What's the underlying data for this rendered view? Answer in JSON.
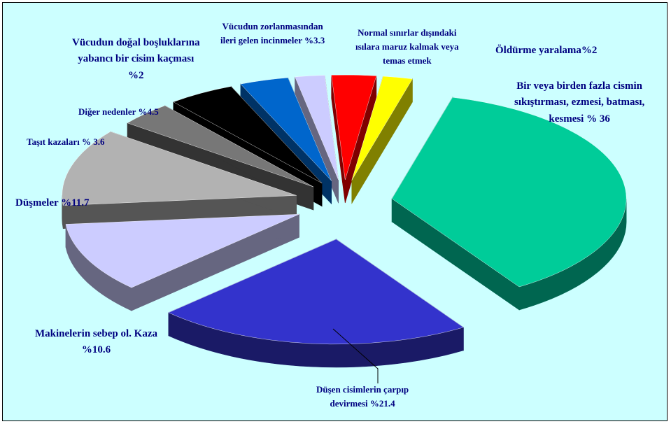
{
  "chart_data": {
    "type": "pie",
    "style": "3d-exploded",
    "categories": [
      "Bir veya birden fazla cismin sıkıştırması, ezmesi, batması, kesmesi % 36",
      "Düşen cisimlerin çarpıp devirmesi %21.4",
      "Makinelerin sebep ol. Kaza %10.6",
      "Düşmeler %11.7",
      "Taşıt kazaları % 3.6",
      "Diğer nedenler %4.5",
      "Vücudun zorlanmasından ileri gelen incinmeler %3.3",
      "Vücudun doğal boşluklarına yabancı bir cisim kaçması %2",
      "Normal sınırlar dışındaki ısılara maruz kalmak veya temas etmek",
      "Öldürme yaralama%2"
    ],
    "values": [
      36,
      21.4,
      10.6,
      11.7,
      3.6,
      4.5,
      3.3,
      2,
      3,
      2
    ],
    "colors": [
      "#00cc99",
      "#3333cc",
      "#ccccff",
      "#b2b2b2",
      "#777777",
      "#000000",
      "#0066cc",
      "#ccccff",
      "#ff0000",
      "#ffff00"
    ],
    "side_colors": [
      "#006650",
      "#1a1a66",
      "#666680",
      "#555555",
      "#333333",
      "#000000",
      "#003366",
      "#666680",
      "#800000",
      "#808000"
    ],
    "background": "#ccffff",
    "label_color": "#000080",
    "legend": "none"
  },
  "labels": [
    {
      "lines": [
        "Bir veya birden fazla cismin",
        "sıkıştırması, ezmesi, batması,",
        "kesmesi % 36"
      ]
    },
    {
      "lines": [
        "Düşen cisimlerin çarpıp",
        "devirmesi %21.4"
      ]
    },
    {
      "lines": [
        "Makinelerin sebep ol. Kaza",
        "%10.6"
      ]
    },
    {
      "lines": [
        "Düşmeler  %11.7"
      ]
    },
    {
      "lines": [
        "Taşıt kazaları % 3.6"
      ]
    },
    {
      "lines": [
        "Diğer nedenler %4.5"
      ]
    },
    {
      "lines": [
        "Vücudun zorlanmasından",
        "ileri gelen incinmeler %3.3"
      ]
    },
    {
      "lines": [
        "Vücudun doğal boşluklarına",
        "yabancı bir cisim kaçması",
        "%2"
      ]
    },
    {
      "lines": [
        "Normal sınırlar dışındaki",
        "ısılara maruz kalmak veya",
        "temas etmek"
      ]
    },
    {
      "lines": [
        "Öldürme yaralama%2"
      ]
    }
  ]
}
